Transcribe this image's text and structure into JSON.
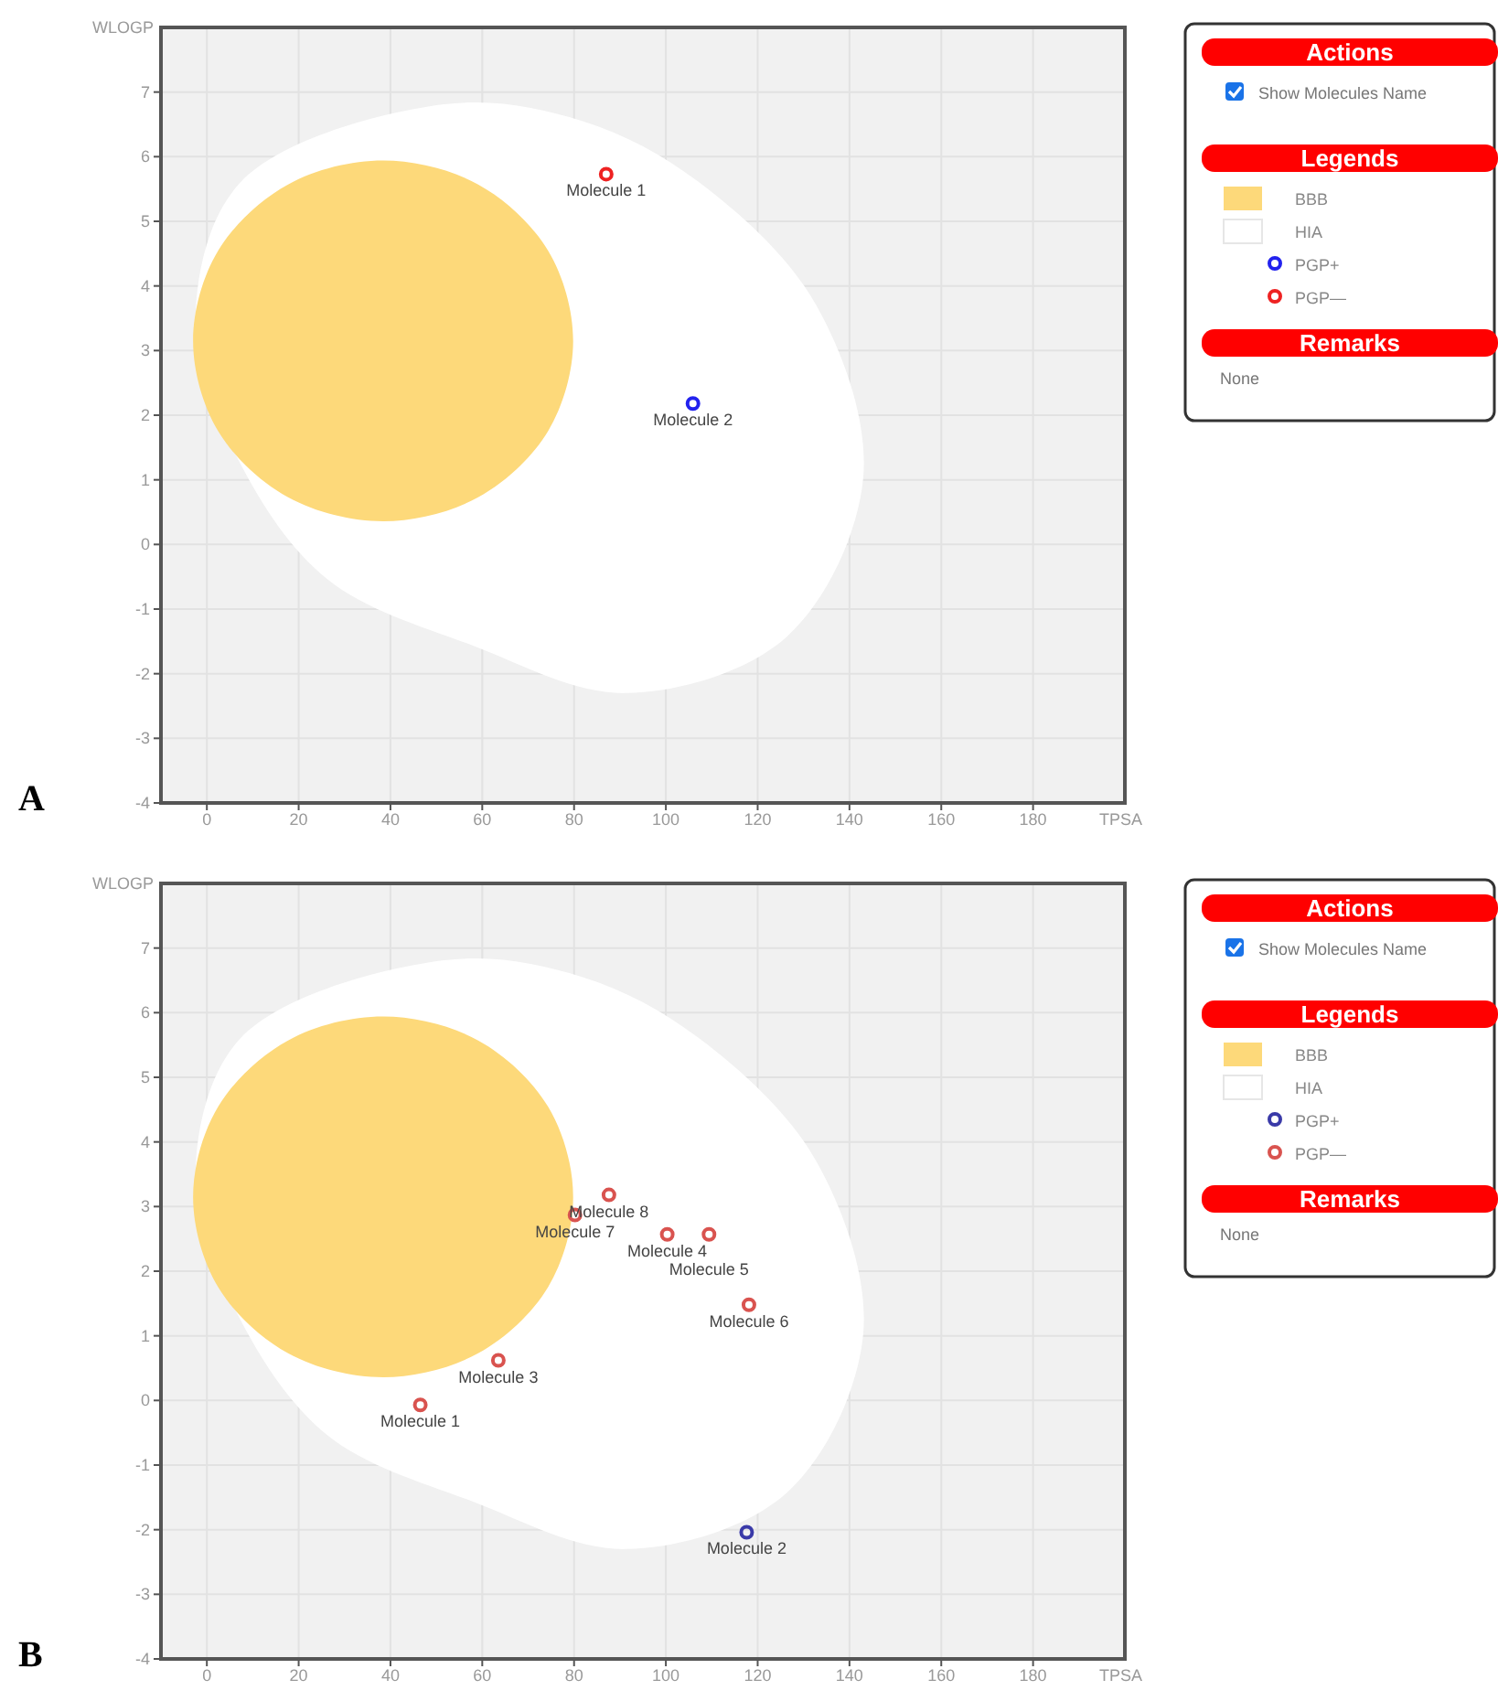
{
  "chart_data": [
    {
      "type": "scatter",
      "xlabel": "TPSA",
      "ylabel": "WLOGP",
      "xlim": [
        -10,
        200
      ],
      "ylim": [
        -4,
        8
      ],
      "xticks": [
        0,
        20,
        40,
        60,
        80,
        100,
        120,
        140,
        160,
        180
      ],
      "yticks": [
        -4,
        -3,
        -2,
        -1,
        0,
        1,
        2,
        3,
        4,
        5,
        6,
        7
      ],
      "grid": true,
      "legend": "right",
      "series": [
        {
          "name": "BBB",
          "type": "area",
          "color": "#fdd97a",
          "x": [
            38.4,
            59.1,
            74.3,
            79.8,
            74.3,
            59.1,
            38.4,
            17.7,
            2.5,
            -3,
            2.5,
            17.7
          ],
          "values": [
            5.94,
            5.57,
            4.55,
            3.15,
            1.75,
            0.73,
            0.36,
            0.73,
            1.75,
            3.15,
            4.55,
            5.57
          ]
        },
        {
          "name": "HIA",
          "type": "area",
          "color": "#ffffff",
          "x": [
            51.7,
            81.9,
            107.3,
            132.7,
            143,
            126.3,
            91.4,
            58.1,
            26.3,
            7.3,
            -2.5,
            7.3
          ],
          "values": [
            6.81,
            6.55,
            5.6,
            3.71,
            1.03,
            -1.43,
            -2.3,
            -1.57,
            -0.54,
            1.25,
            3.37,
            5.6
          ]
        },
        {
          "name": "PGP+",
          "type": "scatter",
          "marker": "circle",
          "color": "#2222ee",
          "x": [
            105.9
          ],
          "values": [
            2.18
          ]
        },
        {
          "name": "PGP—",
          "type": "scatter",
          "marker": "circle",
          "color": "#ee2222",
          "x": [
            87.0
          ],
          "values": [
            5.73
          ]
        }
      ],
      "annotations": [
        "A",
        "Actions",
        "Show Molecules Name",
        "Legends",
        "Remarks",
        "None",
        {
          "text": "Molecule 1",
          "x": 87.0,
          "y": 5.73
        },
        {
          "text": "Molecule 2",
          "x": 105.9,
          "y": 2.18
        }
      ]
    },
    {
      "type": "scatter",
      "xlabel": "TPSA",
      "ylabel": "WLOGP",
      "xlim": [
        -10,
        200
      ],
      "ylim": [
        -4,
        8
      ],
      "xticks": [
        0,
        20,
        40,
        60,
        80,
        100,
        120,
        140,
        160,
        180
      ],
      "yticks": [
        -4,
        -3,
        -2,
        -1,
        0,
        1,
        2,
        3,
        4,
        5,
        6,
        7
      ],
      "grid": true,
      "legend": "right",
      "series": [
        {
          "name": "BBB",
          "type": "area",
          "color": "#fdd97a",
          "x": [
            38.4,
            59.1,
            74.3,
            79.8,
            74.3,
            59.1,
            38.4,
            17.7,
            2.5,
            -3,
            2.5,
            17.7
          ],
          "values": [
            5.94,
            5.57,
            4.55,
            3.15,
            1.75,
            0.73,
            0.36,
            0.73,
            1.75,
            3.15,
            4.55,
            5.57
          ]
        },
        {
          "name": "HIA",
          "type": "area",
          "color": "#ffffff",
          "x": [
            51.7,
            81.9,
            107.3,
            132.7,
            143,
            126.3,
            91.4,
            58.1,
            26.3,
            7.3,
            -2.5,
            7.3
          ],
          "values": [
            6.81,
            6.55,
            5.6,
            3.71,
            1.03,
            -1.43,
            -2.3,
            -1.57,
            -0.54,
            1.25,
            3.37,
            5.6
          ]
        },
        {
          "name": "PGP+",
          "type": "scatter",
          "marker": "circle",
          "color": "#3a3aa8",
          "x": [
            117.6
          ],
          "values": [
            -2.04
          ]
        },
        {
          "name": "PGP—",
          "type": "scatter",
          "marker": "circle",
          "color": "#d9534f",
          "x": [
            46.5,
            63.5,
            100.3,
            109.4,
            118.1,
            80.2,
            87.6
          ],
          "values": [
            -0.07,
            0.62,
            2.57,
            2.57,
            1.48,
            2.87,
            3.18
          ]
        }
      ],
      "annotations": [
        "B",
        "Actions",
        "Show Molecules Name",
        "Legends",
        "Remarks",
        "None",
        {
          "text": "Molecule 1",
          "x": 46.5,
          "y": -0.07
        },
        {
          "text": "Molecule 2",
          "x": 117.6,
          "y": -2.04
        },
        {
          "text": "Molecule 3",
          "x": 63.5,
          "y": 0.62
        },
        {
          "text": "Molecule 4",
          "x": 100.3,
          "y": 2.57
        },
        {
          "text": "Molecule 5",
          "x": 109.4,
          "y": 2.57
        },
        {
          "text": "Molecule 6",
          "x": 118.1,
          "y": 1.48
        },
        {
          "text": "Molecule 7",
          "x": 80.2,
          "y": 2.87
        },
        {
          "text": "Molecule 8",
          "x": 87.6,
          "y": 3.18
        }
      ]
    }
  ]
}
